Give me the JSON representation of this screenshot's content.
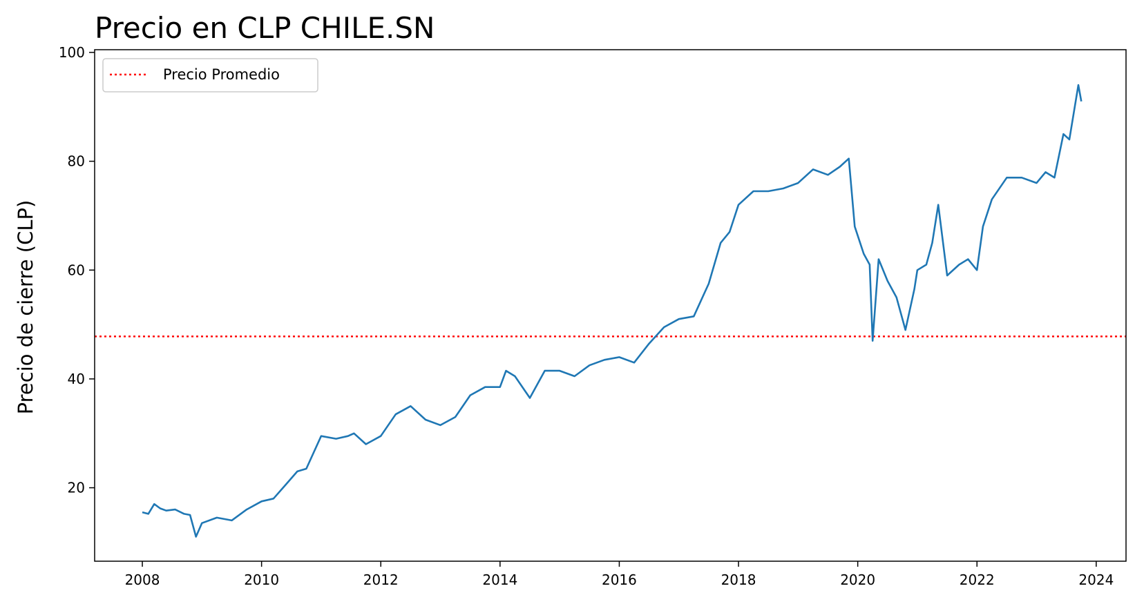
{
  "chart_data": {
    "type": "line",
    "title": "Precio en CLP CHILE.SN",
    "xlabel": "",
    "ylabel": "Precio de cierre (CLP)",
    "xlim": [
      2007.2,
      2024.5
    ],
    "ylim": [
      6.5,
      100.5
    ],
    "x_ticks": [
      "2008",
      "2010",
      "2012",
      "2014",
      "2016",
      "2018",
      "2020",
      "2022",
      "2024"
    ],
    "y_ticks": [
      "20",
      "40",
      "60",
      "80",
      "100"
    ],
    "grid": false,
    "legend": {
      "position": "top-left",
      "entries": [
        "Precio Promedio"
      ]
    },
    "colors": {
      "series": "#1f77b4",
      "mean_line": "#ff0000"
    },
    "series": [
      {
        "x": [
          2008.0,
          2008.1,
          2008.2,
          2008.3,
          2008.4,
          2008.55,
          2008.7,
          2008.8,
          2008.9,
          2009.0,
          2009.25,
          2009.5,
          2009.75,
          2010.0,
          2010.2,
          2010.4,
          2010.6,
          2010.75,
          2011.0,
          2011.25,
          2011.45,
          2011.55,
          2011.75,
          2012.0,
          2012.25,
          2012.5,
          2012.75,
          2013.0,
          2013.25,
          2013.5,
          2013.75,
          2014.0,
          2014.1,
          2014.25,
          2014.5,
          2014.75,
          2015.0,
          2015.25,
          2015.5,
          2015.75,
          2016.0,
          2016.25,
          2016.5,
          2016.75,
          2017.0,
          2017.25,
          2017.5,
          2017.7,
          2017.85,
          2018.0,
          2018.25,
          2018.5,
          2018.75,
          2019.0,
          2019.25,
          2019.5,
          2019.7,
          2019.85,
          2019.95,
          2020.1,
          2020.2,
          2020.25,
          2020.35,
          2020.5,
          2020.65,
          2020.8,
          2020.95,
          2021.0,
          2021.15,
          2021.25,
          2021.35,
          2021.5,
          2021.7,
          2021.85,
          2022.0,
          2022.1,
          2022.25,
          2022.5,
          2022.75,
          2023.0,
          2023.15,
          2023.3,
          2023.45,
          2023.55,
          2023.7,
          2023.75
        ],
        "y": [
          15.5,
          15.2,
          17.0,
          16.2,
          15.8,
          16.0,
          15.2,
          15.0,
          11.0,
          13.5,
          14.5,
          14.0,
          16.0,
          17.5,
          18.0,
          20.5,
          23.0,
          23.5,
          29.5,
          29.0,
          29.5,
          30.0,
          28.0,
          29.5,
          33.5,
          35.0,
          32.5,
          31.5,
          33.0,
          37.0,
          38.5,
          38.5,
          41.5,
          40.5,
          36.5,
          41.5,
          41.5,
          40.5,
          42.5,
          43.5,
          44.0,
          43.0,
          46.5,
          49.5,
          51.0,
          51.5,
          57.5,
          65.0,
          67.0,
          72.0,
          74.5,
          74.5,
          75.0,
          76.0,
          78.5,
          77.5,
          79.0,
          80.5,
          68.0,
          63.0,
          61.0,
          47.0,
          62.0,
          58.0,
          55.0,
          49.0,
          56.5,
          60.0,
          61.0,
          65.0,
          72.0,
          59.0,
          61.0,
          62.0,
          60.0,
          68.0,
          73.0,
          77.0,
          77.0,
          76.0,
          78.0,
          77.0,
          85.0,
          84.0,
          94.0,
          91.0
        ]
      }
    ],
    "mean_line": {
      "y": 47.8
    }
  }
}
